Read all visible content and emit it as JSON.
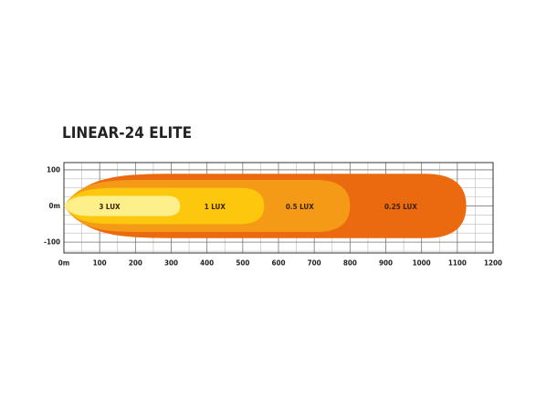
{
  "chart_data": {
    "type": "beam",
    "title": "LINEAR-24 ELITE",
    "xlim": [
      0,
      1200
    ],
    "ylim": [
      -130,
      120
    ],
    "xticks": [
      {
        "value": 0,
        "label": "0m"
      },
      100,
      200,
      300,
      400,
      500,
      600,
      700,
      800,
      900,
      1000,
      1100,
      1200
    ],
    "yticks": [
      100,
      {
        "value": 0,
        "label": "0m"
      },
      -100
    ],
    "grid": true,
    "series": [
      {
        "name": "0.25 LUX",
        "color": "#ec6a0f",
        "reach": 1125,
        "width": 89
      },
      {
        "name": "0.5 LUX",
        "color": "#f59a16",
        "reach": 800,
        "width": 72
      },
      {
        "name": "1 LUX",
        "color": "#fcc70c",
        "reach": 560,
        "width": 50
      },
      {
        "name": "3 LUX",
        "color": "#fdf08a",
        "reach": 325,
        "width": 28
      }
    ]
  }
}
